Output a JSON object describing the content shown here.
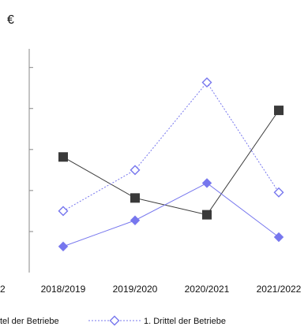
{
  "chart_data": {
    "type": "line",
    "unit": "€",
    "categories": [
      "2018/2019",
      "2019/2020",
      "2020/2021",
      "2021/2022"
    ],
    "left_clipped_tick": "2",
    "series": [
      {
        "name": "",
        "legend_fragment": "",
        "color": "#3a3a3a",
        "marker": "filled-square",
        "line": "solid",
        "values": [
          62,
          40,
          31,
          87
        ]
      },
      {
        "name": "",
        "legend_fragment": "",
        "color": "#7777ee",
        "marker": "filled-diamond",
        "line": "solid",
        "values": [
          14,
          28,
          48,
          19
        ]
      },
      {
        "name": "1. Drittel der Betriebe",
        "legend_fragment": "",
        "color": "#7777ee",
        "marker": "hollow-diamond",
        "line": "dotted",
        "values": [
          33,
          55,
          102,
          43
        ]
      }
    ],
    "legend": {
      "placement": "bottom",
      "items": [
        {
          "text": "tel der Betriebe",
          "marker": "filled-diamond",
          "color": "#7777ee"
        },
        {
          "text": "1. Drittel der Betriebe",
          "marker": "hollow-diamond",
          "color": "#7777ee"
        }
      ]
    },
    "xlabel": "",
    "ylabel": "",
    "ylim": [
      0,
      120
    ],
    "grid": false
  }
}
